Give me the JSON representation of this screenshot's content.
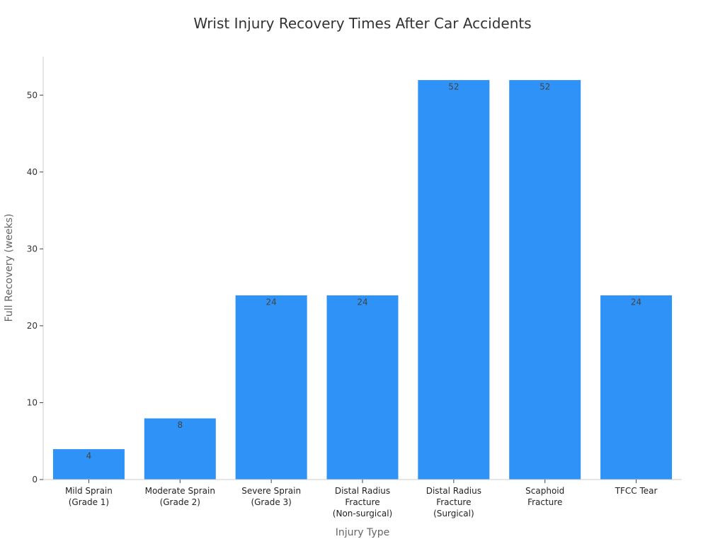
{
  "chart_data": {
    "type": "bar",
    "title": "Wrist Injury Recovery Times After Car Accidents",
    "xlabel": "Injury Type",
    "ylabel": "Full Recovery (weeks)",
    "categories": [
      [
        "Mild Sprain",
        "(Grade 1)"
      ],
      [
        "Moderate Sprain",
        "(Grade 2)"
      ],
      [
        "Severe Sprain",
        "(Grade 3)"
      ],
      [
        "Distal Radius",
        "Fracture",
        "(Non-surgical)"
      ],
      [
        "Distal Radius",
        "Fracture",
        "(Surgical)"
      ],
      [
        "Scaphoid",
        "Fracture"
      ],
      [
        "TFCC Tear"
      ]
    ],
    "values": [
      4,
      8,
      24,
      24,
      52,
      52,
      24
    ],
    "ylim": [
      0,
      55
    ],
    "yticks": [
      0,
      10,
      20,
      30,
      40,
      50
    ],
    "grid": false,
    "bar_color": "#2f92f7",
    "axis_color": "#cccccc"
  }
}
